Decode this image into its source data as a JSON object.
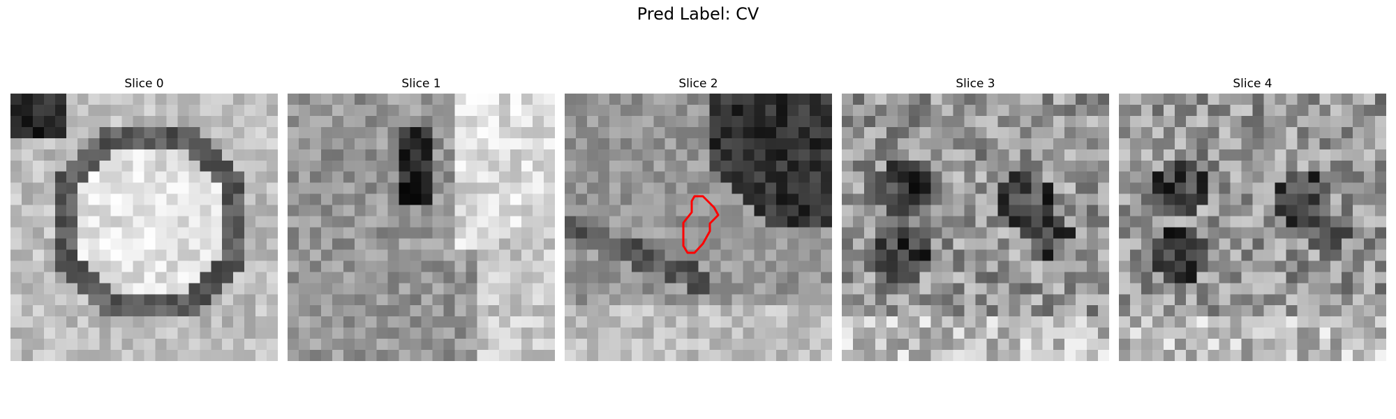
{
  "figure": {
    "title": "Pred Label: CV"
  },
  "panels": [
    {
      "title": "Slice 0"
    },
    {
      "title": "Slice 1"
    },
    {
      "title": "Slice 2",
      "contour_color": "#ff0000"
    },
    {
      "title": "Slice 3"
    },
    {
      "title": "Slice 4"
    }
  ]
}
